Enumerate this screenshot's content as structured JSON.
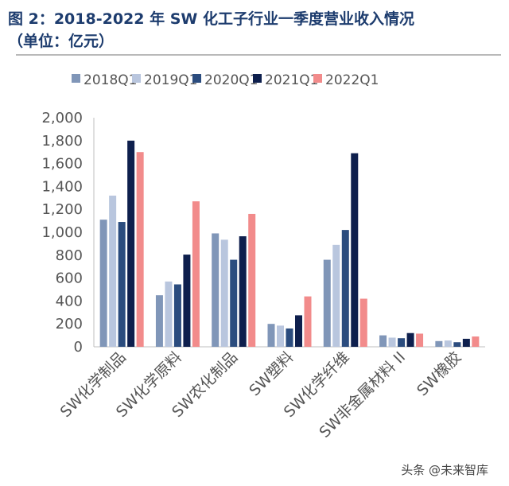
{
  "title_line1": "图 2：2018-2022 年 SW 化工子行业一季度营业收入情况",
  "title_line2": "（单位：亿元）",
  "watermark": "头条 @未来智库",
  "chart_data": {
    "type": "bar",
    "categories": [
      "SW化学制品",
      "SW化学原料",
      "SW农化制品",
      "SW塑料",
      "SW化学纤维",
      "SW非金属材料 II",
      "SW橡胶"
    ],
    "series": [
      {
        "name": "2018Q1",
        "color": "#8096b8",
        "values": [
          1110,
          450,
          990,
          200,
          760,
          100,
          50
        ]
      },
      {
        "name": "2019Q1",
        "color": "#b9c6de",
        "values": [
          1320,
          570,
          935,
          185,
          890,
          80,
          55
        ]
      },
      {
        "name": "2020Q1",
        "color": "#2b4c7e",
        "values": [
          1090,
          545,
          760,
          160,
          1020,
          75,
          40
        ]
      },
      {
        "name": "2021Q1",
        "color": "#0e1f4d",
        "values": [
          1800,
          805,
          965,
          275,
          1690,
          120,
          70
        ]
      },
      {
        "name": "2022Q1",
        "color": "#f28b8b",
        "values": [
          1700,
          1270,
          1160,
          440,
          420,
          115,
          90
        ]
      }
    ],
    "yticks": [
      "0",
      "200",
      "400",
      "600",
      "800",
      "1,000",
      "1,200",
      "1,400",
      "1,600",
      "1,800",
      "2,000"
    ],
    "ylim": [
      0,
      2000
    ],
    "legend_position": "top",
    "grid": false
  }
}
